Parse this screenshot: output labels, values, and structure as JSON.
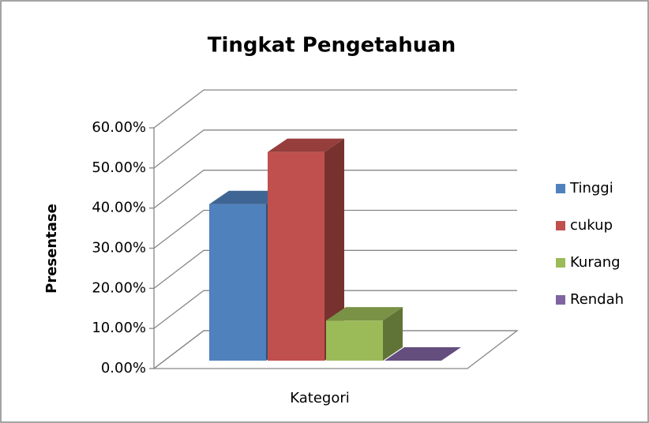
{
  "chart_data": {
    "type": "bar3d",
    "title": "Tingkat Pengetahuan",
    "y_label": "Presentase",
    "categories": [
      "Kategori"
    ],
    "series": [
      {
        "name": "Tinggi",
        "color": "#4f81bd",
        "values": [
          39
        ]
      },
      {
        "name": "cukup",
        "color": "#c0504d",
        "values": [
          52
        ]
      },
      {
        "name": "Kurang",
        "color": "#9bbb59",
        "values": [
          10
        ]
      },
      {
        "name": "Rendah",
        "color": "#8064a2",
        "values": [
          0
        ]
      }
    ],
    "ylim": [
      0,
      60
    ],
    "yticks": [
      {
        "value": 0,
        "label": "0.00%"
      },
      {
        "value": 10,
        "label": "10.00%"
      },
      {
        "value": 20,
        "label": "20.00%"
      },
      {
        "value": 30,
        "label": "30.00%"
      },
      {
        "value": 40,
        "label": "40.00%"
      },
      {
        "value": 50,
        "label": "50.00%"
      },
      {
        "value": 60,
        "label": "60.00%"
      }
    ],
    "grid": true,
    "legend": "right"
  }
}
